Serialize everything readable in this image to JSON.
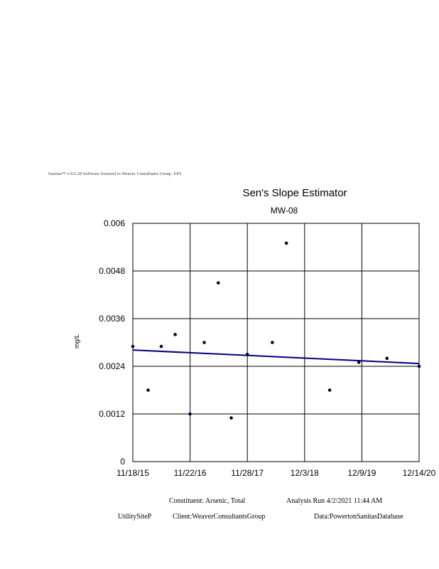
{
  "license_text": "Sanitas™ v.9.6.28 Software licensed to Weaver Consultants Group. EPA",
  "chart_data": {
    "type": "scatter",
    "title": "Sen's Slope Estimator",
    "subtitle": "MW-08",
    "xlabel": "",
    "ylabel": "mg/L",
    "x_ticks": [
      "11/18/15",
      "11/22/16",
      "11/28/17",
      "12/3/18",
      "12/9/19",
      "12/14/20"
    ],
    "y_ticks": [
      "0",
      "0.0012",
      "0.0024",
      "0.0036",
      "0.0048",
      "0.006"
    ],
    "ylim": [
      0,
      0.006
    ],
    "grid": true,
    "series": [
      {
        "marker": "point",
        "color": "#000033",
        "points": [
          {
            "x": "2015-11-18",
            "y": 0.0029
          },
          {
            "x": "2016-02-25",
            "y": 0.0018
          },
          {
            "x": "2016-05-20",
            "y": 0.0029
          },
          {
            "x": "2016-08-18",
            "y": 0.0032
          },
          {
            "x": "2016-11-22",
            "y": 0.0012
          },
          {
            "x": "2017-02-22",
            "y": 0.003
          },
          {
            "x": "2017-05-24",
            "y": 0.0045
          },
          {
            "x": "2017-08-16",
            "y": 0.0011
          },
          {
            "x": "2017-11-28",
            "y": 0.0027
          },
          {
            "x": "2018-05-09",
            "y": 0.003
          },
          {
            "x": "2018-08-08",
            "y": 0.0055
          },
          {
            "x": "2019-05-15",
            "y": 0.0018
          },
          {
            "x": "2019-11-20",
            "y": 0.0025
          },
          {
            "x": "2020-05-20",
            "y": 0.0026
          },
          {
            "x": "2020-12-14",
            "y": 0.0024
          }
        ]
      }
    ],
    "trend_line": {
      "color": "#000080",
      "start": {
        "x": "2015-11-18",
        "y": 0.00281
      },
      "end": {
        "x": "2020-12-14",
        "y": 0.00247
      }
    }
  },
  "footer": {
    "constituent": "Constituent: Arsenic, Total",
    "analysis_run": "Analysis Run 4/2/2021 11:44 AM",
    "site": "UtilitySiteP",
    "client": "Client:WeaverConsultantsGroup",
    "data": "Data:PowertonSanitasDatabase"
  }
}
